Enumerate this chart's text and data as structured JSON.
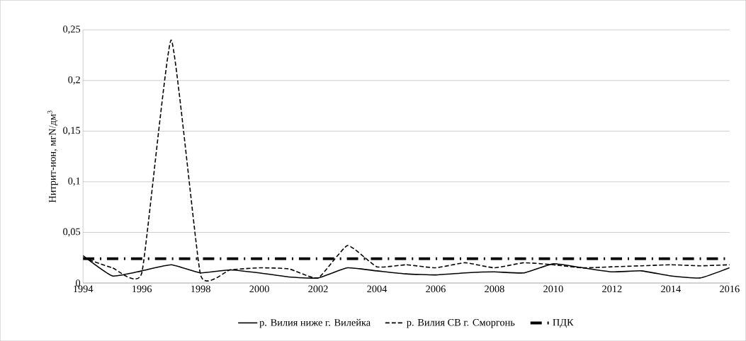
{
  "chart_data": {
    "type": "line",
    "ylabel": "Нитрит-ион, мгN/дм$^{3}$",
    "x": [
      1994,
      1995,
      1996,
      1997,
      1998,
      1999,
      2000,
      2001,
      2002,
      2003,
      2004,
      2005,
      2006,
      2007,
      2008,
      2009,
      2010,
      2011,
      2012,
      2013,
      2014,
      2015,
      2016
    ],
    "xlim": [
      1994,
      2016
    ],
    "xticks": [
      1994,
      1996,
      1998,
      2000,
      2002,
      2004,
      2006,
      2008,
      2010,
      2012,
      2014,
      2016
    ],
    "ylim": [
      0,
      0.25
    ],
    "yticks": [
      0,
      {
        "value": 0.05,
        "label": "0,05"
      },
      {
        "value": 0.1,
        "label": "0,1"
      },
      {
        "value": 0.15,
        "label": "0,15"
      },
      {
        "value": 0.2,
        "label": "0,2"
      },
      {
        "value": 0.25,
        "label": "0,25"
      }
    ],
    "grid": "y",
    "legend": "bottom",
    "series": [
      {
        "name": "р. Вилия ниже г. Вилейка",
        "color": "#000000",
        "line_style": "solid",
        "values": [
          0.027,
          0.007,
          0.012,
          0.018,
          0.01,
          0.013,
          0.01,
          0.006,
          0.005,
          0.015,
          0.012,
          0.009,
          0.008,
          0.01,
          0.011,
          0.01,
          0.019,
          0.015,
          0.011,
          0.012,
          0.007,
          0.005,
          0.015
        ]
      },
      {
        "name": "р. Вилия СВ г. Сморгонь",
        "color": "#000000",
        "line_style": "dashed",
        "values": [
          0.025,
          0.015,
          0.01,
          0.24,
          0.008,
          0.013,
          0.015,
          0.014,
          0.005,
          0.037,
          0.016,
          0.018,
          0.015,
          0.02,
          0.015,
          0.02,
          0.018,
          0.015,
          0.016,
          0.017,
          0.018,
          0.017,
          0.018
        ]
      },
      {
        "name": "ПДК",
        "color": "#000000",
        "line_style": "dashdot",
        "values": [
          0.024,
          0.024,
          0.024,
          0.024,
          0.024,
          0.024,
          0.024,
          0.024,
          0.024,
          0.024,
          0.024,
          0.024,
          0.024,
          0.024,
          0.024,
          0.024,
          0.024,
          0.024,
          0.024,
          0.024,
          0.024,
          0.024,
          0.024
        ]
      }
    ]
  }
}
